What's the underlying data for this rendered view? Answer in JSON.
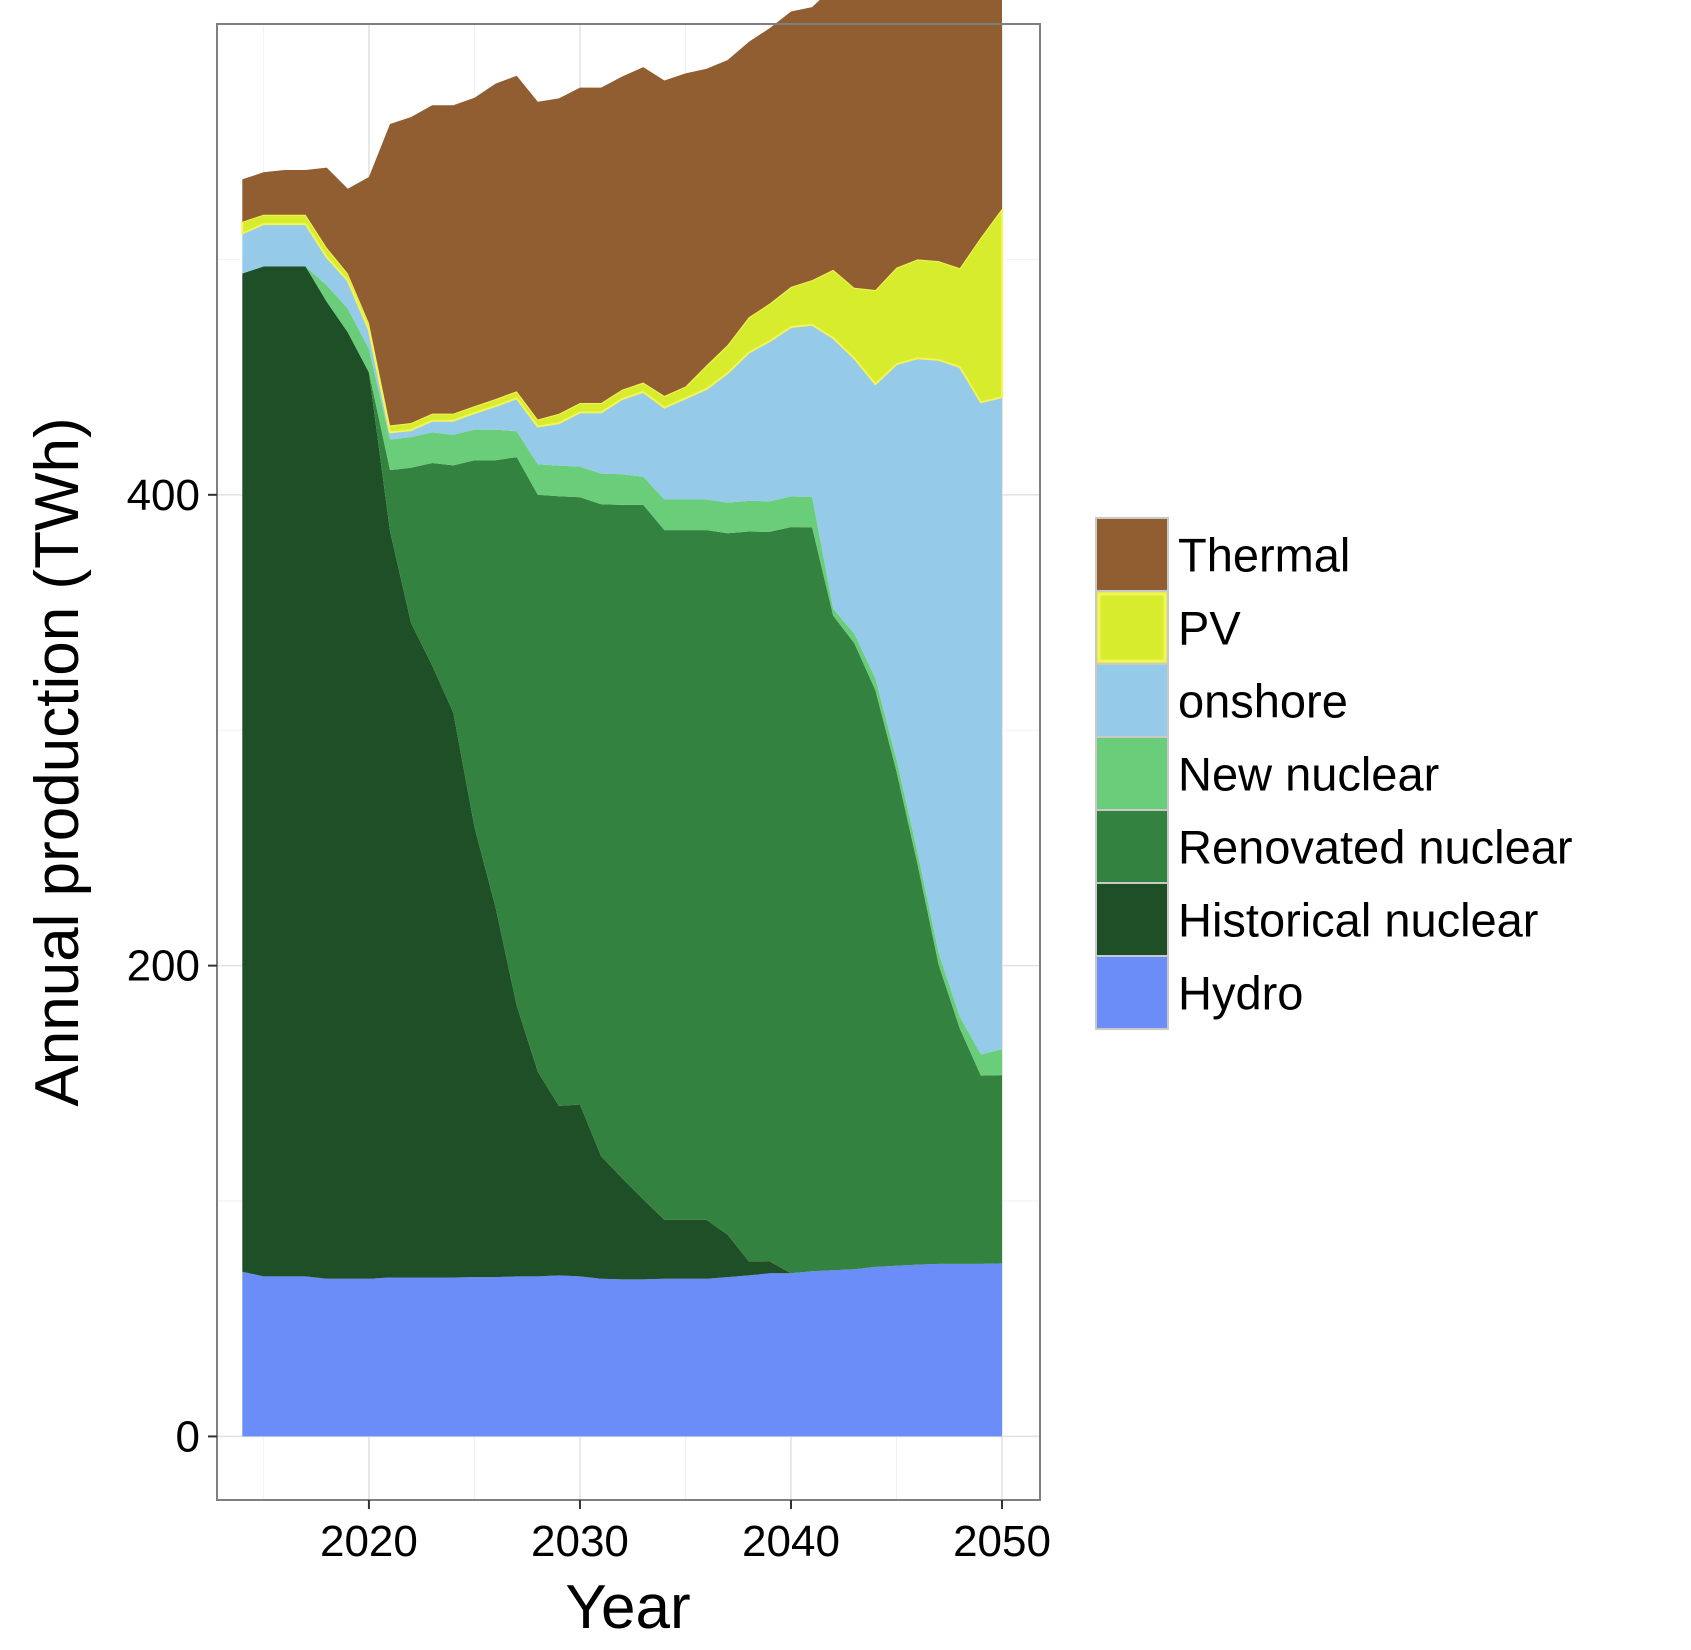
{
  "chart_data": {
    "type": "area",
    "stacked": true,
    "title": "",
    "xlabel": "Year",
    "ylabel": "Annual production (TWh)",
    "xlim": [
      2012.8,
      2051.8
    ],
    "ylim": [
      -27,
      600
    ],
    "x_ticks": [
      2020,
      2030,
      2040,
      2050
    ],
    "y_ticks": [
      0,
      200,
      400
    ],
    "grid": true,
    "legend_position": "right",
    "x": [
      2014,
      2015,
      2016,
      2017,
      2018,
      2019,
      2020,
      2021,
      2022,
      2023,
      2024,
      2025,
      2026,
      2027,
      2028,
      2029,
      2030,
      2031,
      2032,
      2033,
      2034,
      2035,
      2036,
      2037,
      2038,
      2039,
      2040,
      2041,
      2042,
      2043,
      2044,
      2045,
      2046,
      2047,
      2048,
      2049,
      2050
    ],
    "series": [
      {
        "name": "Hydro",
        "color": "#6A8DF8",
        "values": [
          70,
          68,
          68,
          68,
          67,
          67,
          67,
          67.5,
          67.5,
          67.5,
          67.5,
          67.7,
          67.7,
          68,
          68,
          68.4,
          68,
          67,
          66.7,
          66.7,
          67,
          67,
          67,
          67.7,
          68.4,
          69.3,
          69.3,
          70.2,
          70.6,
          71,
          72,
          72.5,
          73,
          73.3,
          73.3,
          73.3,
          73.5
        ]
      },
      {
        "name": "Historical nuclear",
        "color": "#1F4F27",
        "values": [
          424,
          429,
          429,
          429,
          415,
          402,
          385,
          317,
          278,
          260,
          240,
          191,
          157,
          115,
          87,
          72,
          73,
          52,
          43,
          34,
          25,
          25,
          25,
          18,
          6,
          5,
          0,
          0,
          0,
          0,
          0,
          0,
          0,
          0,
          0,
          0,
          0
        ]
      },
      {
        "name": "Renovated nuclear",
        "color": "#34823F",
        "values": [
          0,
          0,
          0,
          0,
          0,
          0,
          0,
          26,
          66,
          86,
          105,
          156,
          190,
          233,
          245,
          259,
          258,
          277,
          286,
          295,
          293,
          293,
          293,
          298,
          310,
          310,
          317,
          316,
          278,
          266,
          245,
          210,
          170,
          127,
          100,
          80,
          80
        ]
      },
      {
        "name": "New nuclear",
        "color": "#6ACD7A",
        "values": [
          0,
          0,
          0,
          0,
          7,
          10,
          10,
          13,
          13,
          13,
          13,
          13,
          13,
          11,
          13,
          13,
          13,
          13,
          13,
          12,
          13,
          13,
          13,
          13,
          13,
          13,
          13,
          13,
          3,
          4,
          5,
          5,
          5,
          5,
          5,
          9,
          11
        ]
      },
      {
        "name": "onshore",
        "color": "#95CBE8",
        "values": [
          17,
          18,
          18,
          18,
          12,
          12,
          8,
          3,
          3,
          5,
          6,
          7,
          10,
          14,
          16,
          18,
          23,
          26,
          32,
          36,
          39,
          43,
          47,
          55,
          63,
          68,
          72,
          73,
          115,
          117,
          125,
          168,
          210,
          252,
          276,
          277,
          277
        ]
      },
      {
        "name": "PV",
        "color": "#D7EC2D",
        "values": [
          5,
          4,
          4,
          4,
          4,
          3,
          3,
          3,
          3,
          3,
          3,
          3,
          3,
          3,
          3,
          4,
          4,
          4,
          4,
          4,
          5,
          5,
          10,
          12,
          15,
          16,
          17,
          19,
          29,
          30,
          40,
          41,
          42,
          42,
          42,
          70,
          80
        ]
      },
      {
        "name": "Thermal",
        "color": "#915E31",
        "values": [
          18,
          18,
          19,
          19,
          34,
          36,
          62,
          128,
          130,
          131,
          131,
          131,
          134,
          134,
          135,
          134,
          134,
          134,
          133,
          134,
          134,
          133,
          126,
          121,
          117,
          117,
          117,
          116,
          120,
          124,
          132,
          136,
          139,
          141,
          148,
          149,
          140
        ]
      }
    ],
    "legend_order": [
      "Thermal",
      "PV",
      "onshore",
      "New nuclear",
      "Renovated nuclear",
      "Historical nuclear",
      "Hydro"
    ],
    "pv_outline_color": "#F3F35A"
  }
}
